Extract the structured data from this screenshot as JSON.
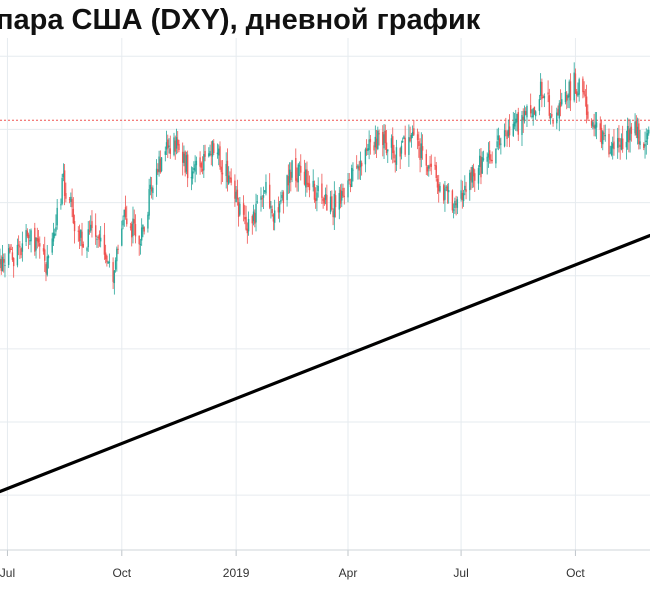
{
  "chart_data": {
    "type": "candlestick",
    "title": "пара США (DXY), дневной график",
    "xlabel": "",
    "ylabel": "",
    "x_ticks": [
      "Jul",
      "Oct",
      "2019",
      "Apr",
      "Jul",
      "Oct"
    ],
    "x_tick_dates": [
      "2018-07-01",
      "2018-10-01",
      "2019-01-01",
      "2019-04-01",
      "2019-07-01",
      "2019-10-01"
    ],
    "x_range": [
      "2018-06-25",
      "2019-11-30"
    ],
    "y_range": [
      86.5,
      100.5
    ],
    "grid": true,
    "colors": {
      "up": "#26a69a",
      "down": "#ef5350",
      "resistance": "#ef5350",
      "trendline": "#000000",
      "grid": "#e6ebef"
    },
    "resistance_level": 98.25,
    "trendline": {
      "start": {
        "date": "2018-06-25",
        "value": 88.1
      },
      "end": {
        "date": "2019-11-30",
        "value": 95.1
      }
    },
    "path_anchors": [
      {
        "date": "2018-06-25",
        "value": 94.3
      },
      {
        "date": "2018-07-08",
        "value": 94.6
      },
      {
        "date": "2018-07-19",
        "value": 95.2
      },
      {
        "date": "2018-08-01",
        "value": 94.3
      },
      {
        "date": "2018-08-15",
        "value": 96.6
      },
      {
        "date": "2018-08-28",
        "value": 95.0
      },
      {
        "date": "2018-09-10",
        "value": 95.1
      },
      {
        "date": "2018-09-24",
        "value": 93.9
      },
      {
        "date": "2018-10-03",
        "value": 95.6
      },
      {
        "date": "2018-10-15",
        "value": 95.0
      },
      {
        "date": "2018-10-31",
        "value": 97.1
      },
      {
        "date": "2018-11-12",
        "value": 97.6
      },
      {
        "date": "2018-11-26",
        "value": 96.8
      },
      {
        "date": "2018-12-14",
        "value": 97.5
      },
      {
        "date": "2018-12-31",
        "value": 96.2
      },
      {
        "date": "2019-01-10",
        "value": 95.2
      },
      {
        "date": "2019-01-24",
        "value": 96.4
      },
      {
        "date": "2019-02-01",
        "value": 95.6
      },
      {
        "date": "2019-02-15",
        "value": 96.9
      },
      {
        "date": "2019-03-01",
        "value": 96.5
      },
      {
        "date": "2019-03-20",
        "value": 95.9
      },
      {
        "date": "2019-04-10",
        "value": 97.0
      },
      {
        "date": "2019-04-26",
        "value": 97.9
      },
      {
        "date": "2019-05-10",
        "value": 97.3
      },
      {
        "date": "2019-05-24",
        "value": 97.8
      },
      {
        "date": "2019-06-10",
        "value": 96.7
      },
      {
        "date": "2019-06-25",
        "value": 95.8
      },
      {
        "date": "2019-07-05",
        "value": 96.6
      },
      {
        "date": "2019-07-20",
        "value": 97.1
      },
      {
        "date": "2019-08-05",
        "value": 97.9
      },
      {
        "date": "2019-08-20",
        "value": 98.2
      },
      {
        "date": "2019-09-03",
        "value": 99.0
      },
      {
        "date": "2019-09-15",
        "value": 98.3
      },
      {
        "date": "2019-10-01",
        "value": 99.3
      },
      {
        "date": "2019-10-15",
        "value": 98.3
      },
      {
        "date": "2019-10-31",
        "value": 97.4
      },
      {
        "date": "2019-11-15",
        "value": 98.0
      },
      {
        "date": "2019-11-30",
        "value": 97.7
      }
    ]
  }
}
